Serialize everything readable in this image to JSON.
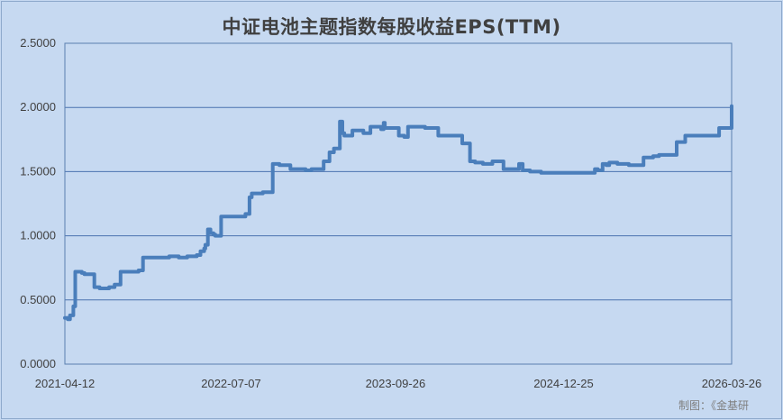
{
  "chart_data": {
    "type": "line",
    "title": "中证电池主题指数每股收益EPS(TTM)",
    "xlabel": "",
    "ylabel": "",
    "x_tick_labels": [
      "2021-04-12",
      "2022-07-07",
      "2023-09-26",
      "2024-12-25",
      "2026-03-26"
    ],
    "y_tick_labels": [
      "0.0000",
      "0.5000",
      "1.0000",
      "1.5000",
      "2.0000",
      "2.5000"
    ],
    "xlim": [
      "2021-04-12",
      "2026-03-26"
    ],
    "ylim": [
      0,
      2.5
    ],
    "grid": "horizontal",
    "legend": "none",
    "line_color": "#4a7ebb",
    "series": [
      {
        "x": [
          "2021-04-12",
          "2021-04-20",
          "2021-04-26",
          "2021-05-05",
          "2021-05-10",
          "2021-05-18",
          "2021-05-28",
          "2021-06-04",
          "2021-07-01",
          "2021-07-15",
          "2021-07-30",
          "2021-08-10",
          "2021-08-25",
          "2021-09-10",
          "2021-09-24",
          "2021-10-29",
          "2021-11-10",
          "2021-11-20",
          "2021-12-01",
          "2021-12-25",
          "2022-01-20",
          "2022-02-15",
          "2022-03-10",
          "2022-03-25",
          "2022-04-05",
          "2022-04-15",
          "2022-04-25",
          "2022-04-28",
          "2022-05-05",
          "2022-05-12",
          "2022-05-20",
          "2022-05-25",
          "2022-06-10",
          "2022-07-05",
          "2022-08-15",
          "2022-08-26",
          "2022-09-01",
          "2022-09-15",
          "2022-10-01",
          "2022-10-28",
          "2022-11-15",
          "2022-12-15",
          "2023-01-10",
          "2023-01-25",
          "2023-02-10",
          "2023-03-15",
          "2023-03-31",
          "2023-04-12",
          "2023-04-28",
          "2023-05-05",
          "2023-05-10",
          "2023-05-18",
          "2023-06-01",
          "2023-07-01",
          "2023-07-20",
          "2023-08-10",
          "2023-08-18",
          "2023-08-25",
          "2023-08-28",
          "2023-09-05",
          "2023-09-25",
          "2023-10-05",
          "2023-10-20",
          "2023-10-30",
          "2023-11-20",
          "2023-12-15",
          "2024-01-20",
          "2024-02-10",
          "2024-03-25",
          "2024-04-15",
          "2024-04-29",
          "2024-05-20",
          "2024-06-15",
          "2024-07-15",
          "2024-08-10",
          "2024-08-26",
          "2024-09-05",
          "2024-09-25",
          "2024-10-25",
          "2024-10-28",
          "2024-11-05",
          "2024-12-05",
          "2024-12-25",
          "2025-01-20",
          "2025-02-20",
          "2025-03-20",
          "2025-03-28",
          "2025-04-10",
          "2025-04-20",
          "2025-04-28",
          "2025-05-05",
          "2025-05-20",
          "2025-06-20",
          "2025-07-15",
          "2025-07-30",
          "2025-08-25",
          "2025-09-10",
          "2025-09-20",
          "2025-10-20",
          "2025-10-28",
          "2025-11-20",
          "2025-12-20",
          "2026-01-20",
          "2026-02-20",
          "2026-03-01",
          "2026-03-05",
          "2026-03-10",
          "2026-03-15",
          "2026-03-26"
        ],
        "y": [
          0.36,
          0.35,
          0.38,
          0.45,
          0.72,
          0.72,
          0.71,
          0.7,
          0.6,
          0.59,
          0.59,
          0.6,
          0.62,
          0.72,
          0.72,
          0.73,
          0.83,
          0.83,
          0.83,
          0.83,
          0.84,
          0.83,
          0.84,
          0.84,
          0.85,
          0.88,
          0.9,
          0.93,
          1.05,
          1.02,
          1.01,
          1.0,
          1.15,
          1.15,
          1.17,
          1.3,
          1.33,
          1.33,
          1.34,
          1.56,
          1.55,
          1.52,
          1.52,
          1.51,
          1.52,
          1.58,
          1.65,
          1.68,
          1.89,
          1.8,
          1.78,
          1.78,
          1.82,
          1.8,
          1.85,
          1.85,
          1.83,
          1.88,
          1.84,
          1.84,
          1.84,
          1.78,
          1.77,
          1.85,
          1.85,
          1.84,
          1.78,
          1.78,
          1.72,
          1.58,
          1.57,
          1.56,
          1.58,
          1.52,
          1.52,
          1.56,
          1.51,
          1.5,
          1.49,
          1.49,
          1.49,
          1.49,
          1.49,
          1.49,
          1.49,
          1.52,
          1.51,
          1.56,
          1.55,
          1.57,
          1.57,
          1.56,
          1.55,
          1.55,
          1.61,
          1.62,
          1.63,
          1.63,
          1.63,
          1.73,
          1.78,
          1.78,
          1.78,
          1.84,
          1.84,
          1.84,
          1.84,
          1.84,
          2.01
        ]
      }
    ]
  },
  "footer": {
    "source_note": "制图：《金基研"
  }
}
